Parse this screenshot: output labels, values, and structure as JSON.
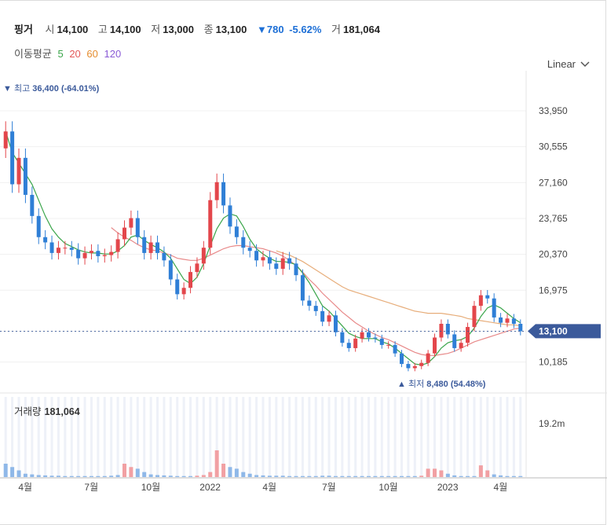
{
  "header": {
    "name": "핑거",
    "open_label": "시",
    "open": "14,100",
    "high_label": "고",
    "high": "14,100",
    "low_label": "저",
    "low": "13,000",
    "close_label": "종",
    "close": "13,100",
    "change": "780",
    "change_pct": "-5.62%",
    "volume_label": "거",
    "volume": "181,064"
  },
  "moving_average": {
    "label": "이동평균",
    "periods": [
      {
        "value": "5",
        "color": "#3aa54a"
      },
      {
        "value": "20",
        "color": "#e35858"
      },
      {
        "value": "60",
        "color": "#e58c2e"
      },
      {
        "value": "120",
        "color": "#8a5ad6"
      }
    ]
  },
  "scale_selector": "Linear",
  "colors": {
    "up": "#e3464b",
    "down": "#2f7fd6",
    "price_tag": "#3b5a9b",
    "ma20_line": "#e88a8a",
    "ma60_line": "#e7ad7a"
  },
  "chart_data": {
    "type": "candlestick",
    "y_ticks": [
      "33,950",
      "30,555",
      "27,160",
      "23,765",
      "20,370",
      "16,975",
      "13,100",
      "10,185"
    ],
    "y_range": [
      8000,
      37000
    ],
    "x_ticks": [
      "4월",
      "7월",
      "10월",
      "2022",
      "4월",
      "7월",
      "10월",
      "2023",
      "4월"
    ],
    "current_price_tag": "13,100",
    "max_annotation": {
      "label": "최고",
      "value": "36,400 (-64.01%)"
    },
    "min_annotation": {
      "label": "최저",
      "value": "8,480 (54.48%)"
    },
    "closes": [
      32000,
      27000,
      29500,
      26000,
      24000,
      22000,
      21500,
      20500,
      21000,
      21000,
      20800,
      20000,
      20500,
      20700,
      20200,
      20300,
      20600,
      21800,
      22900,
      23800,
      22000,
      20500,
      21500,
      20500,
      19800,
      18000,
      16600,
      17200,
      18700,
      19500,
      21000,
      25500,
      27200,
      25000,
      23000,
      22000,
      21000,
      20700,
      19800,
      20100,
      19500,
      19000,
      20000,
      19500,
      18400,
      16000,
      15500,
      15000,
      14000,
      14600,
      13000,
      12000,
      11500,
      12400,
      13000,
      12500,
      12400,
      11800,
      11800,
      11000,
      10000,
      9600,
      9800,
      10100,
      11000,
      12500,
      13800,
      12800,
      11500,
      12000,
      13500,
      15500,
      16500,
      16200,
      14400,
      13900,
      14300,
      13800,
      13100
    ],
    "ma5": [
      32000,
      30000,
      29000,
      28000,
      27000,
      25500,
      24000,
      22800,
      22000,
      21400,
      21100,
      20800,
      20600,
      20500,
      20500,
      20400,
      20400,
      20700,
      21200,
      22000,
      22200,
      21700,
      21300,
      21000,
      20600,
      20000,
      19000,
      18000,
      17600,
      18200,
      19500,
      21200,
      22800,
      23800,
      24200,
      24000,
      23000,
      21800,
      20900,
      20400,
      20000,
      19700,
      19700,
      19600,
      19400,
      18600,
      17700,
      16600,
      15500,
      15000,
      14300,
      13600,
      12900,
      12600,
      12400,
      12400,
      12400,
      12100,
      11900,
      11500,
      11000,
      10500,
      10000,
      9900,
      10100,
      10700,
      11500,
      12000,
      12200,
      12300,
      12600,
      13400,
      14500,
      15300,
      15600,
      15300,
      14800,
      14300,
      13900
    ],
    "ma20": [
      null,
      null,
      null,
      null,
      null,
      null,
      null,
      null,
      null,
      null,
      null,
      null,
      null,
      null,
      null,
      null,
      22900,
      22400,
      22000,
      21700,
      21300,
      21000,
      20800,
      20700,
      20500,
      20300,
      20000,
      19900,
      19800,
      19800,
      20000,
      20300,
      20600,
      20900,
      21100,
      21200,
      21200,
      21100,
      21000,
      20900,
      20700,
      20500,
      20200,
      19800,
      19300,
      18700,
      18000,
      17400,
      16700,
      16100,
      15500,
      14900,
      14400,
      13900,
      13500,
      13100,
      12800,
      12500,
      12300,
      12000,
      11700,
      11400,
      11100,
      10900,
      10800,
      10800,
      10900,
      11000,
      11200,
      11500,
      11800,
      12100,
      12300,
      12500,
      12700,
      12900,
      13100,
      13300,
      13400
    ],
    "ma60": [
      null,
      null,
      null,
      null,
      null,
      null,
      null,
      null,
      null,
      null,
      null,
      null,
      null,
      null,
      null,
      null,
      null,
      null,
      null,
      null,
      null,
      null,
      null,
      null,
      null,
      null,
      null,
      null,
      null,
      null,
      null,
      null,
      null,
      null,
      null,
      null,
      null,
      null,
      null,
      null,
      null,
      20700,
      20500,
      20300,
      20000,
      19700,
      19300,
      18900,
      18500,
      18100,
      17700,
      17300,
      17000,
      16800,
      16600,
      16400,
      16200,
      16000,
      15800,
      15600,
      15400,
      15200,
      15000,
      14900,
      14800,
      14800,
      14800,
      14700,
      14600,
      14500,
      14300,
      14200,
      14100,
      14000,
      13900,
      13800,
      13700,
      13700,
      13600
    ],
    "volume_label": "거래량",
    "volume_value": "181,064",
    "volume_tick": "19.2m",
    "volume_range": [
      0,
      24
    ],
    "volume": [
      4,
      3,
      2,
      1,
      0.8,
      0.6,
      0.5,
      0.4,
      0.4,
      0.3,
      0.3,
      0.3,
      0.3,
      0.3,
      0.3,
      0.3,
      0.4,
      0.6,
      4,
      3,
      2.5,
      1.5,
      0.8,
      0.6,
      0.5,
      0.4,
      0.3,
      0.3,
      0.3,
      0.4,
      0.6,
      1.5,
      8,
      4,
      3,
      2.5,
      1.5,
      1,
      0.6,
      0.5,
      0.4,
      0.4,
      0.4,
      0.3,
      0.3,
      0.3,
      0.3,
      0.3,
      0.4,
      0.4,
      0.3,
      0.3,
      0.3,
      0.3,
      0.3,
      0.3,
      0.3,
      0.3,
      0.3,
      0.3,
      0.3,
      0.3,
      0.3,
      0.4,
      2.5,
      2.5,
      2,
      1,
      0.5,
      0.3,
      0.3,
      0.3,
      3.5,
      2,
      0.8,
      0.5,
      0.3,
      0.3,
      0.3
    ],
    "volume_colors": [
      "down",
      "down",
      "down",
      "down",
      "down",
      "down",
      "down",
      "down",
      "down",
      "down",
      "down",
      "down",
      "down",
      "down",
      "down",
      "down",
      "down",
      "down",
      "up",
      "up",
      "down",
      "down",
      "down",
      "down",
      "down",
      "down",
      "down",
      "down",
      "down",
      "up",
      "up",
      "up",
      "up",
      "up",
      "down",
      "down",
      "down",
      "down",
      "down",
      "down",
      "down",
      "down",
      "down",
      "down",
      "down",
      "down",
      "down",
      "down",
      "down",
      "down",
      "down",
      "down",
      "down",
      "down",
      "down",
      "down",
      "down",
      "down",
      "down",
      "down",
      "down",
      "down",
      "down",
      "up",
      "up",
      "up",
      "up",
      "down",
      "down",
      "down",
      "down",
      "down",
      "up",
      "up",
      "down",
      "down",
      "down",
      "down",
      "down"
    ]
  }
}
